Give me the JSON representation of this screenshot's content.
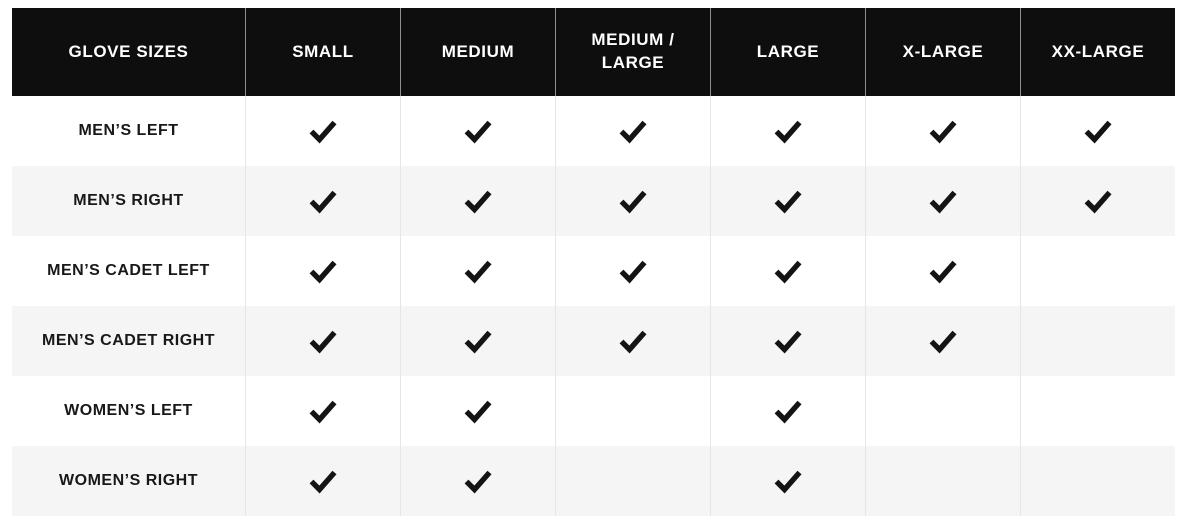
{
  "page": {
    "background": "#ffffff"
  },
  "table": {
    "name": "glove-size-availability-chart",
    "header": {
      "columns": [
        {
          "label": "GLOVE SIZES"
        },
        {
          "label": "SMALL"
        },
        {
          "label": "MEDIUM"
        },
        {
          "label": "MEDIUM / LARGE"
        },
        {
          "label": "LARGE"
        },
        {
          "label": "X-LARGE"
        },
        {
          "label": "XX-LARGE"
        }
      ]
    },
    "rows": [
      {
        "label": "MEN’S LEFT",
        "checks": [
          true,
          true,
          true,
          true,
          true,
          true
        ]
      },
      {
        "label": "MEN’S RIGHT",
        "checks": [
          true,
          true,
          true,
          true,
          true,
          true
        ]
      },
      {
        "label": "MEN’S CADET LEFT",
        "checks": [
          true,
          true,
          true,
          true,
          true,
          false
        ]
      },
      {
        "label": "MEN’S CADET RIGHT",
        "checks": [
          true,
          true,
          true,
          true,
          true,
          false
        ]
      },
      {
        "label": "WOMEN’S LEFT",
        "checks": [
          true,
          true,
          false,
          true,
          false,
          false
        ]
      },
      {
        "label": "WOMEN’S RIGHT",
        "checks": [
          true,
          true,
          false,
          true,
          false,
          false
        ]
      }
    ],
    "check_icon": "check-icon",
    "colors": {
      "header_bg": "#0e0e0e",
      "header_text": "#ffffff",
      "header_divider": "#8f8f8f",
      "row_bg": "#ffffff",
      "row_alt_bg": "#f5f5f5",
      "body_divider": "#e6e6e6",
      "label_color": "#181818",
      "check_color": "#141414"
    }
  },
  "chart_data": {
    "type": "table",
    "title": "Glove Sizes",
    "columns": [
      "GLOVE SIZES",
      "SMALL",
      "MEDIUM",
      "MEDIUM / LARGE",
      "LARGE",
      "X-LARGE",
      "XX-LARGE"
    ],
    "rows": [
      {
        "label": "MEN’S LEFT",
        "available": [
          "SMALL",
          "MEDIUM",
          "MEDIUM / LARGE",
          "LARGE",
          "X-LARGE",
          "XX-LARGE"
        ]
      },
      {
        "label": "MEN’S RIGHT",
        "available": [
          "SMALL",
          "MEDIUM",
          "MEDIUM / LARGE",
          "LARGE",
          "X-LARGE",
          "XX-LARGE"
        ]
      },
      {
        "label": "MEN’S CADET LEFT",
        "available": [
          "SMALL",
          "MEDIUM",
          "MEDIUM / LARGE",
          "LARGE",
          "X-LARGE"
        ]
      },
      {
        "label": "MEN’S CADET RIGHT",
        "available": [
          "SMALL",
          "MEDIUM",
          "MEDIUM / LARGE",
          "LARGE",
          "X-LARGE"
        ]
      },
      {
        "label": "WOMEN’S LEFT",
        "available": [
          "SMALL",
          "MEDIUM",
          "LARGE"
        ]
      },
      {
        "label": "WOMEN’S RIGHT",
        "available": [
          "SMALL",
          "MEDIUM",
          "LARGE"
        ]
      }
    ],
    "legend_position": "none",
    "grid": "vertical-dividers-only"
  }
}
